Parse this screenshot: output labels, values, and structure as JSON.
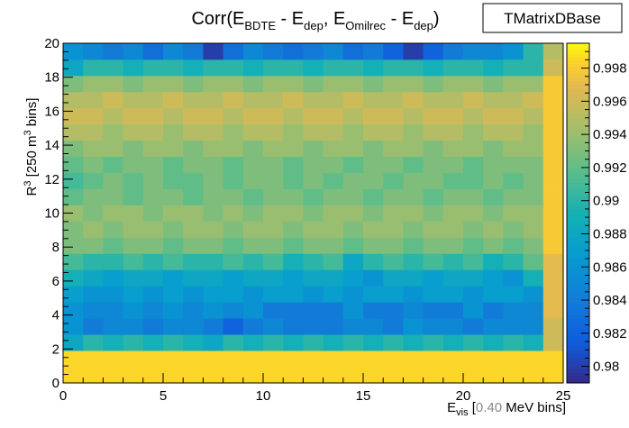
{
  "chart_data": {
    "type": "heatmap",
    "title": {
      "lead": "Corr(E",
      "sub1": "BDTE",
      "mid1": " - E",
      "sub2": "dep",
      "mid2": ", E",
      "sub3": "Omilrec",
      "mid3": " - E",
      "sub4": "dep",
      "tail": ")"
    },
    "statbox_label": "TMatrixDBase",
    "xlabel": {
      "main": "E",
      "sub": "vis",
      "bracket_open": " [",
      "value": "0.40",
      "unit": " MeV bins]"
    },
    "ylabel": {
      "main": "R",
      "sup": "3",
      "bracket_open": " [250 m",
      "sup2": "3",
      "unit": " bins]"
    },
    "xlim": [
      0,
      25
    ],
    "ylim": [
      0,
      20
    ],
    "x_ticks": [
      0,
      5,
      10,
      15,
      20,
      25
    ],
    "y_ticks": [
      0,
      2,
      4,
      6,
      8,
      10,
      12,
      14,
      16,
      18,
      20
    ],
    "z_range": [
      0.979,
      0.9995
    ],
    "z_ticks": [
      "0.98",
      "0.982",
      "0.984",
      "0.986",
      "0.988",
      "0.99",
      "0.992",
      "0.994",
      "0.996",
      "0.998"
    ],
    "z_tick_values": [
      0.98,
      0.982,
      0.984,
      0.986,
      0.988,
      0.99,
      0.992,
      0.994,
      0.996,
      0.998
    ],
    "row_y_from": 0,
    "row_y_to": 20,
    "n_cols": 25,
    "rows": [
      [
        0.9985,
        0.9985,
        0.9985,
        0.9985,
        0.9985,
        0.9985,
        0.9985,
        0.9985,
        0.9985,
        0.9985,
        0.9985,
        0.9985,
        0.9985,
        0.9985,
        0.9985,
        0.9985,
        0.9985,
        0.9985,
        0.9985,
        0.9985,
        0.9985,
        0.9985,
        0.9985,
        0.9985,
        0.9985
      ],
      [
        0.9985,
        0.9985,
        0.9985,
        0.9985,
        0.9985,
        0.9985,
        0.9985,
        0.9985,
        0.9985,
        0.9985,
        0.9985,
        0.9985,
        0.9985,
        0.9985,
        0.9985,
        0.9985,
        0.9985,
        0.9985,
        0.9985,
        0.9985,
        0.9985,
        0.9985,
        0.9985,
        0.9985,
        0.9985
      ],
      [
        0.988,
        0.99,
        0.989,
        0.99,
        0.989,
        0.99,
        0.989,
        0.988,
        0.99,
        0.989,
        0.99,
        0.989,
        0.99,
        0.989,
        0.99,
        0.989,
        0.99,
        0.989,
        0.99,
        0.989,
        0.99,
        0.989,
        0.99,
        0.989,
        0.996
      ],
      [
        0.986,
        0.984,
        0.985,
        0.985,
        0.984,
        0.985,
        0.985,
        0.984,
        0.982,
        0.984,
        0.985,
        0.984,
        0.984,
        0.984,
        0.985,
        0.985,
        0.984,
        0.986,
        0.985,
        0.985,
        0.984,
        0.985,
        0.985,
        0.985,
        0.996
      ],
      [
        0.986,
        0.985,
        0.985,
        0.986,
        0.985,
        0.986,
        0.985,
        0.986,
        0.985,
        0.986,
        0.984,
        0.984,
        0.984,
        0.984,
        0.986,
        0.984,
        0.984,
        0.985,
        0.984,
        0.984,
        0.986,
        0.984,
        0.985,
        0.985,
        0.997
      ],
      [
        0.987,
        0.986,
        0.986,
        0.987,
        0.986,
        0.987,
        0.986,
        0.987,
        0.987,
        0.986,
        0.987,
        0.987,
        0.986,
        0.987,
        0.986,
        0.987,
        0.987,
        0.986,
        0.987,
        0.987,
        0.986,
        0.987,
        0.987,
        0.986,
        0.997
      ],
      [
        0.989,
        0.988,
        0.987,
        0.988,
        0.988,
        0.987,
        0.988,
        0.988,
        0.987,
        0.988,
        0.988,
        0.987,
        0.988,
        0.988,
        0.987,
        0.986,
        0.988,
        0.988,
        0.987,
        0.988,
        0.988,
        0.987,
        0.986,
        0.989,
        0.997
      ],
      [
        0.991,
        0.99,
        0.99,
        0.991,
        0.99,
        0.991,
        0.99,
        0.99,
        0.991,
        0.99,
        0.991,
        0.989,
        0.99,
        0.991,
        0.988,
        0.99,
        0.991,
        0.99,
        0.991,
        0.99,
        0.991,
        0.989,
        0.99,
        0.992,
        0.997
      ],
      [
        0.993,
        0.993,
        0.992,
        0.993,
        0.993,
        0.992,
        0.993,
        0.993,
        0.992,
        0.993,
        0.993,
        0.992,
        0.993,
        0.993,
        0.992,
        0.993,
        0.993,
        0.992,
        0.993,
        0.993,
        0.992,
        0.993,
        0.992,
        0.993,
        0.998
      ],
      [
        0.993,
        0.994,
        0.993,
        0.994,
        0.994,
        0.993,
        0.994,
        0.994,
        0.993,
        0.994,
        0.994,
        0.993,
        0.994,
        0.994,
        0.993,
        0.994,
        0.994,
        0.993,
        0.994,
        0.994,
        0.993,
        0.994,
        0.993,
        0.994,
        0.998
      ],
      [
        0.994,
        0.993,
        0.994,
        0.994,
        0.993,
        0.994,
        0.994,
        0.993,
        0.994,
        0.993,
        0.994,
        0.994,
        0.993,
        0.994,
        0.994,
        0.993,
        0.994,
        0.994,
        0.993,
        0.994,
        0.994,
        0.993,
        0.994,
        0.994,
        0.998
      ],
      [
        0.992,
        0.993,
        0.993,
        0.992,
        0.993,
        0.993,
        0.992,
        0.993,
        0.993,
        0.992,
        0.993,
        0.993,
        0.992,
        0.993,
        0.993,
        0.992,
        0.993,
        0.993,
        0.992,
        0.993,
        0.993,
        0.992,
        0.993,
        0.993,
        0.998
      ],
      [
        0.991,
        0.992,
        0.993,
        0.992,
        0.993,
        0.992,
        0.992,
        0.993,
        0.992,
        0.993,
        0.993,
        0.992,
        0.993,
        0.992,
        0.993,
        0.993,
        0.992,
        0.993,
        0.993,
        0.992,
        0.992,
        0.993,
        0.992,
        0.993,
        0.998
      ],
      [
        0.992,
        0.993,
        0.992,
        0.993,
        0.993,
        0.992,
        0.993,
        0.993,
        0.992,
        0.993,
        0.993,
        0.992,
        0.993,
        0.993,
        0.992,
        0.993,
        0.993,
        0.992,
        0.993,
        0.993,
        0.992,
        0.993,
        0.993,
        0.993,
        0.998
      ],
      [
        0.993,
        0.994,
        0.994,
        0.993,
        0.994,
        0.994,
        0.993,
        0.994,
        0.994,
        0.993,
        0.994,
        0.994,
        0.993,
        0.994,
        0.994,
        0.993,
        0.994,
        0.994,
        0.993,
        0.994,
        0.994,
        0.993,
        0.994,
        0.994,
        0.998
      ],
      [
        0.995,
        0.995,
        0.994,
        0.995,
        0.995,
        0.994,
        0.995,
        0.995,
        0.994,
        0.995,
        0.995,
        0.994,
        0.995,
        0.995,
        0.994,
        0.995,
        0.995,
        0.994,
        0.995,
        0.995,
        0.994,
        0.995,
        0.995,
        0.994,
        0.998
      ],
      [
        0.996,
        0.996,
        0.995,
        0.996,
        0.996,
        0.995,
        0.996,
        0.996,
        0.995,
        0.996,
        0.996,
        0.995,
        0.996,
        0.996,
        0.995,
        0.996,
        0.996,
        0.995,
        0.996,
        0.996,
        0.995,
        0.996,
        0.996,
        0.995,
        0.998
      ],
      [
        0.995,
        0.995,
        0.996,
        0.995,
        0.995,
        0.996,
        0.995,
        0.995,
        0.996,
        0.995,
        0.995,
        0.996,
        0.995,
        0.995,
        0.996,
        0.995,
        0.995,
        0.996,
        0.995,
        0.995,
        0.996,
        0.995,
        0.995,
        0.996,
        0.998
      ],
      [
        0.993,
        0.994,
        0.994,
        0.993,
        0.994,
        0.994,
        0.993,
        0.994,
        0.994,
        0.993,
        0.994,
        0.994,
        0.993,
        0.994,
        0.994,
        0.993,
        0.994,
        0.994,
        0.993,
        0.994,
        0.994,
        0.993,
        0.994,
        0.994,
        0.998
      ],
      [
        0.988,
        0.99,
        0.99,
        0.989,
        0.99,
        0.99,
        0.989,
        0.99,
        0.99,
        0.989,
        0.99,
        0.99,
        0.989,
        0.99,
        0.99,
        0.989,
        0.99,
        0.99,
        0.989,
        0.99,
        0.99,
        0.989,
        0.99,
        0.99,
        0.996
      ],
      [
        0.986,
        0.985,
        0.984,
        0.985,
        0.983,
        0.985,
        0.984,
        0.98,
        0.983,
        0.985,
        0.984,
        0.983,
        0.984,
        0.985,
        0.983,
        0.984,
        0.982,
        0.98,
        0.982,
        0.984,
        0.985,
        0.985,
        0.986,
        0.99,
        0.995
      ]
    ]
  }
}
